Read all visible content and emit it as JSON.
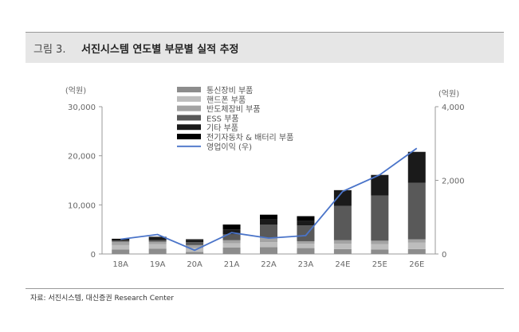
{
  "header": {
    "figure_label": "그림 3.",
    "title": "서진시스템 연도별 부문별 실적 추정"
  },
  "source": "자료: 서진시스템, 대신증권 Research Center",
  "chart_data": {
    "type": "bar",
    "stacked": true,
    "categories": [
      "18A",
      "19A",
      "20A",
      "21A",
      "22A",
      "23A",
      "24E",
      "25E",
      "26E"
    ],
    "y_left": {
      "unit": "(억원)",
      "ylim": [
        0,
        30000
      ],
      "ticks": [
        "0",
        "10,000",
        "20,000",
        "30,000"
      ]
    },
    "y_right": {
      "unit": "(억원)",
      "ylim": [
        0,
        4000
      ],
      "ticks": [
        "0",
        "2,000",
        "4,000"
      ]
    },
    "series": [
      {
        "name": "통신장비 부품",
        "color": "#8c8c8c",
        "values": [
          900,
          1100,
          400,
          1300,
          1400,
          1200,
          1000,
          900,
          1000
        ]
      },
      {
        "name": "핸드폰 부품",
        "color": "#bdbdbd",
        "values": [
          900,
          900,
          800,
          900,
          1000,
          900,
          1100,
          1100,
          1300
        ]
      },
      {
        "name": "반도체장비 부품",
        "color": "#a3a3a3",
        "values": [
          700,
          500,
          600,
          600,
          900,
          500,
          700,
          700,
          700
        ]
      },
      {
        "name": "ESS 부품",
        "color": "#595959",
        "values": [
          200,
          300,
          600,
          1200,
          2700,
          3200,
          7000,
          9200,
          11500
        ]
      },
      {
        "name": "기타 부품",
        "color": "#1a1a1a",
        "values": [
          300,
          500,
          500,
          1000,
          1000,
          900,
          3200,
          4200,
          6300
        ]
      },
      {
        "name": "전기자동차 & 배터리 부품",
        "color": "#000000",
        "values": [
          100,
          200,
          100,
          1000,
          1000,
          1000,
          0,
          0,
          0
        ]
      },
      {
        "name": "영업이익 (우)",
        "color": "#4a74c9",
        "type": "line",
        "axis": "right",
        "values": [
          400,
          530,
          100,
          580,
          430,
          500,
          1700,
          2150,
          2870
        ]
      }
    ],
    "legend_position": "top-center",
    "grid": false
  }
}
